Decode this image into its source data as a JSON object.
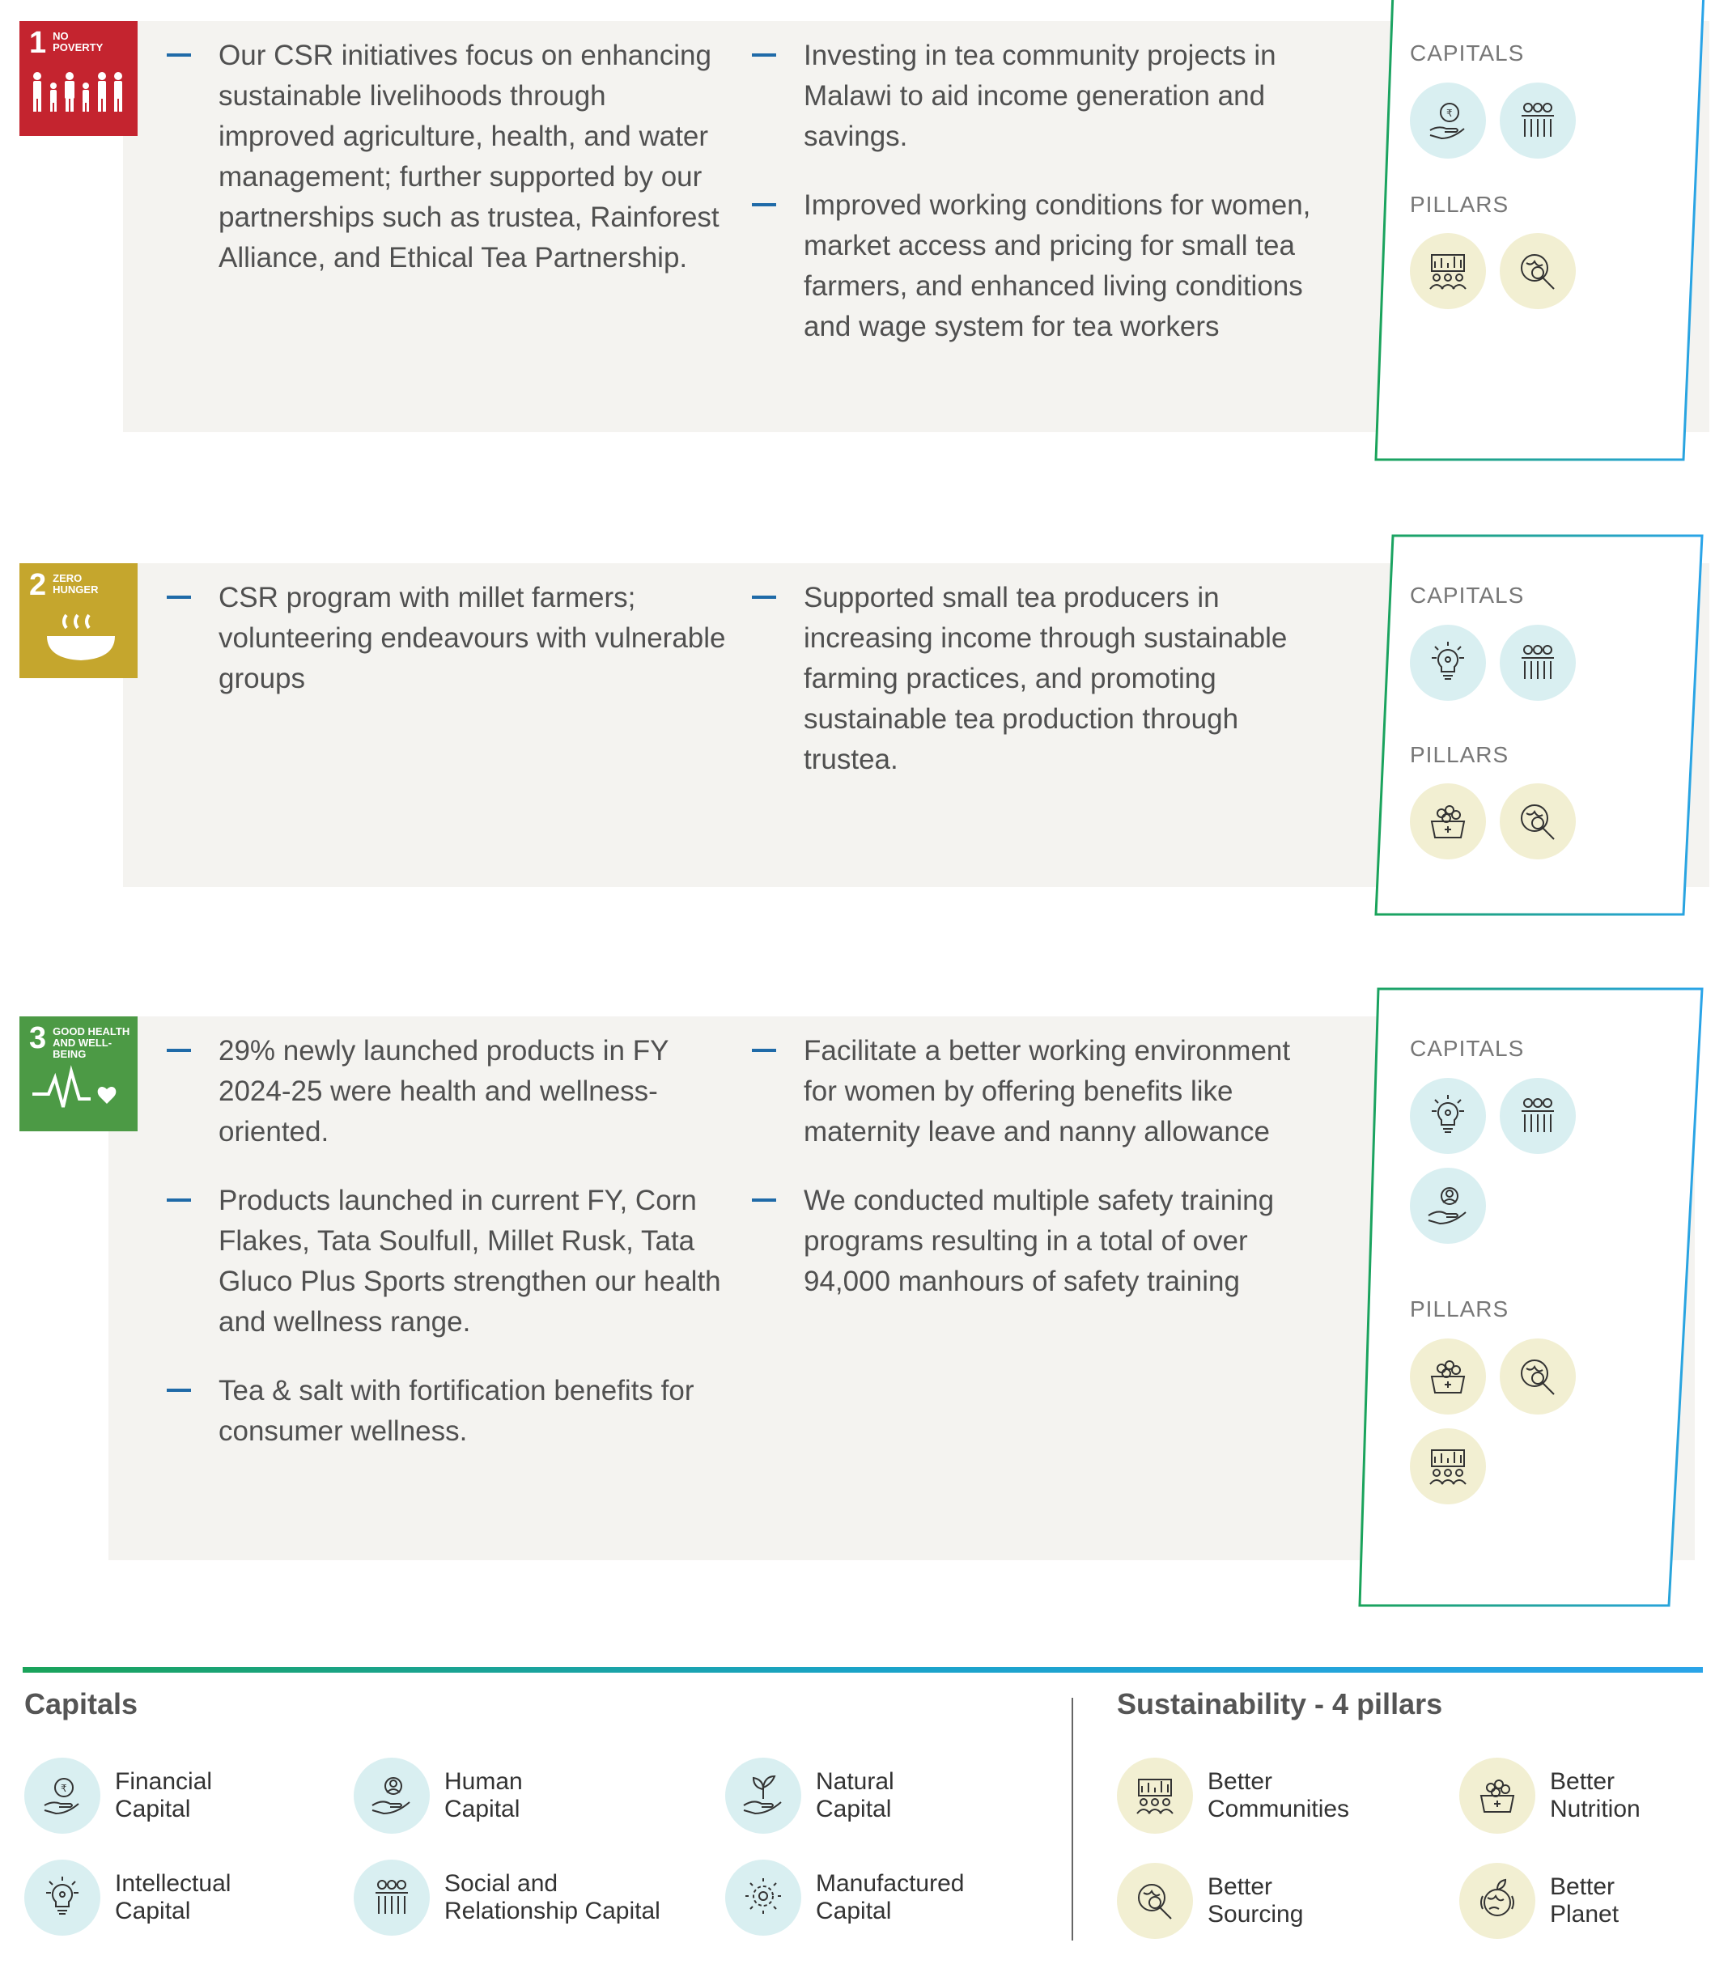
{
  "goals": [
    {
      "number": "1",
      "name_line1": "NO",
      "name_line2": "POVERTY",
      "color": "#c4242f",
      "left_bullets": [
        "Our CSR initiatives focus on enhancing sustainable livelihoods through improved agriculture, health, and water management; further supported by our partnerships such as trustea, Rainforest Alliance, and Ethical Tea Partnership."
      ],
      "right_bullets": [
        "Investing in tea community projects in Malawi to aid income generation and savings.",
        "Improved working conditions for women, market access and pricing for small tea farmers, and enhanced living conditions and wage system for tea workers"
      ],
      "capitals_label": "CAPITALS",
      "pillars_label": "PILLARS",
      "capital_icons": [
        "financial-capital-icon",
        "social-relationship-capital-icon"
      ],
      "pillar_icons": [
        "better-communities-icon",
        "better-sourcing-icon"
      ]
    },
    {
      "number": "2",
      "name_line1": "ZERO",
      "name_line2": "HUNGER",
      "color": "#c5a62d",
      "left_bullets": [
        "CSR program with millet farmers; volunteering endeavours with vulnerable groups"
      ],
      "right_bullets": [
        "Supported small tea producers in increasing income through sustainable farming practices, and promoting sustainable tea production through trustea."
      ],
      "capitals_label": "CAPITALS",
      "pillars_label": "PILLARS",
      "capital_icons": [
        "intellectual-capital-icon",
        "social-relationship-capital-icon"
      ],
      "pillar_icons": [
        "better-nutrition-icon",
        "better-sourcing-icon"
      ]
    },
    {
      "number": "3",
      "name_line1": "GOOD HEALTH",
      "name_line2": "AND WELL-BEING",
      "color": "#4c9a45",
      "left_bullets": [
        "29% newly launched products in FY 2024-25 were health and wellness-oriented.",
        "Products launched in current FY, Corn Flakes, Tata Soulfull, Millet Rusk, Tata Gluco Plus Sports strengthen our health and wellness range.",
        "Tea & salt with fortification benefits for consumer wellness."
      ],
      "right_bullets": [
        "Facilitate a better working environment for women by offering benefits like maternity leave and nanny allowance",
        "We conducted multiple safety training programs resulting in a total of over 94,000 manhours of safety training"
      ],
      "capitals_label": "CAPITALS",
      "pillars_label": "PILLARS",
      "capital_icons": [
        "intellectual-capital-icon",
        "social-relationship-capital-icon",
        "human-capital-icon"
      ],
      "pillar_icons": [
        "better-nutrition-icon",
        "better-sourcing-icon",
        "better-communities-icon"
      ]
    }
  ],
  "legend": {
    "capitals_title": "Capitals",
    "pillars_title": "Sustainability - 4 pillars",
    "capitals": [
      {
        "line1": "Financial",
        "line2": "Capital",
        "icon": "financial-capital-icon"
      },
      {
        "line1": "Human",
        "line2": "Capital",
        "icon": "human-capital-icon"
      },
      {
        "line1": "Natural",
        "line2": "Capital",
        "icon": "natural-capital-icon"
      },
      {
        "line1": "Intellectual",
        "line2": "Capital",
        "icon": "intellectual-capital-icon"
      },
      {
        "line1": "Social and",
        "line2": "Relationship Capital",
        "icon": "social-relationship-capital-icon"
      },
      {
        "line1": "Manufactured",
        "line2": "Capital",
        "icon": "manufactured-capital-icon"
      }
    ],
    "pillars": [
      {
        "line1": "Better",
        "line2": "Communities",
        "icon": "better-communities-icon"
      },
      {
        "line1": "Better",
        "line2": "Nutrition",
        "icon": "better-nutrition-icon"
      },
      {
        "line1": "Better",
        "line2": "Sourcing",
        "icon": "better-sourcing-icon"
      },
      {
        "line1": "Better",
        "line2": "Planet",
        "icon": "better-planet-icon"
      }
    ]
  },
  "colors": {
    "capital_bg": "#d9eff1",
    "pillar_bg": "#f2efd2",
    "bullet_dash": "#1f6aa8",
    "box_border_start": "#1aa35a",
    "box_border_end": "#2aa4e8"
  }
}
